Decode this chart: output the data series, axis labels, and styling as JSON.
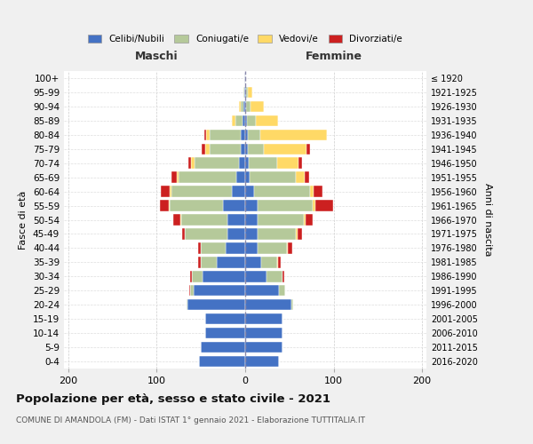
{
  "age_groups": [
    "0-4",
    "5-9",
    "10-14",
    "15-19",
    "20-24",
    "25-29",
    "30-34",
    "35-39",
    "40-44",
    "45-49",
    "50-54",
    "55-59",
    "60-64",
    "65-69",
    "70-74",
    "75-79",
    "80-84",
    "85-89",
    "90-94",
    "95-99",
    "100+"
  ],
  "birth_years": [
    "2016-2020",
    "2011-2015",
    "2006-2010",
    "2001-2005",
    "1996-2000",
    "1991-1995",
    "1986-1990",
    "1981-1985",
    "1976-1980",
    "1971-1975",
    "1966-1970",
    "1961-1965",
    "1956-1960",
    "1951-1955",
    "1946-1950",
    "1941-1945",
    "1936-1940",
    "1931-1935",
    "1926-1930",
    "1921-1925",
    "≤ 1920"
  ],
  "maschi": {
    "celibi": [
      52,
      50,
      45,
      45,
      65,
      58,
      48,
      32,
      22,
      20,
      20,
      25,
      15,
      10,
      7,
      5,
      5,
      3,
      2,
      1,
      1
    ],
    "coniugati": [
      0,
      0,
      0,
      0,
      1,
      4,
      12,
      18,
      28,
      48,
      52,
      60,
      68,
      65,
      50,
      35,
      35,
      8,
      3,
      1,
      0
    ],
    "vedovi": [
      0,
      0,
      0,
      0,
      0,
      0,
      0,
      0,
      0,
      0,
      1,
      1,
      2,
      2,
      4,
      5,
      4,
      4,
      2,
      0,
      0
    ],
    "divorziati": [
      0,
      0,
      0,
      0,
      0,
      1,
      2,
      3,
      3,
      3,
      8,
      10,
      10,
      6,
      3,
      4,
      2,
      0,
      0,
      0,
      0
    ]
  },
  "femmine": {
    "nubili": [
      38,
      42,
      42,
      42,
      52,
      38,
      24,
      18,
      14,
      14,
      14,
      14,
      10,
      5,
      4,
      3,
      3,
      2,
      1,
      1,
      0
    ],
    "coniugate": [
      0,
      0,
      0,
      0,
      2,
      7,
      18,
      18,
      33,
      43,
      52,
      62,
      63,
      52,
      32,
      18,
      14,
      10,
      5,
      2,
      0
    ],
    "vedove": [
      0,
      0,
      0,
      0,
      0,
      0,
      0,
      1,
      1,
      2,
      2,
      3,
      4,
      10,
      24,
      48,
      75,
      25,
      15,
      5,
      0
    ],
    "divorziate": [
      0,
      0,
      0,
      0,
      0,
      0,
      2,
      3,
      5,
      5,
      8,
      20,
      10,
      5,
      4,
      4,
      0,
      0,
      0,
      0,
      0
    ]
  },
  "colors": {
    "celibi": "#4472c4",
    "coniugati": "#b5c99a",
    "vedovi": "#ffd966",
    "divorziati": "#cc2020"
  },
  "xlim": [
    -205,
    205
  ],
  "xticks": [
    -200,
    -100,
    0,
    100,
    200
  ],
  "xticklabels": [
    "200",
    "100",
    "0",
    "100",
    "200"
  ],
  "title": "Popolazione per età, sesso e stato civile - 2021",
  "subtitle": "COMUNE DI AMANDOLA (FM) - Dati ISTAT 1° gennaio 2021 - Elaborazione TUTTITALIA.IT",
  "ylabel_left": "Fasce di età",
  "ylabel_right": "Anni di nascita",
  "label_maschi": "Maschi",
  "label_femmine": "Femmine",
  "legend_labels": [
    "Celibi/Nubili",
    "Coniugati/e",
    "Vedovi/e",
    "Divorziati/e"
  ],
  "background_color": "#f0f0f0",
  "plot_bg_color": "#ffffff"
}
